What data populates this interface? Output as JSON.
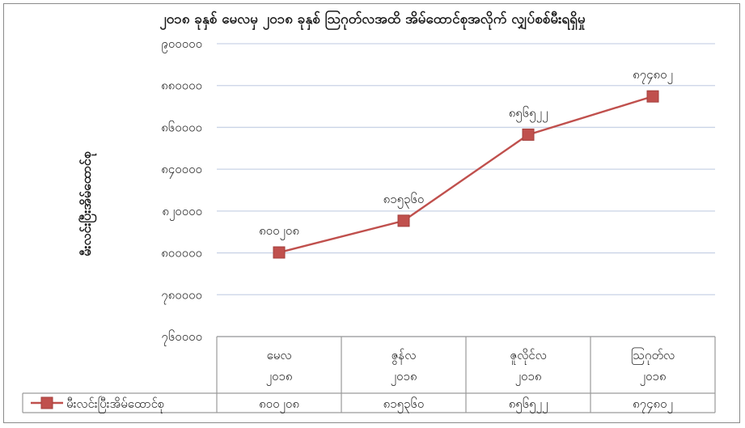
{
  "chart_data": {
    "type": "line",
    "title": "၂၀၁၈ ခုနှစ် မေလမှ ၂၀၁၈ ခုနှစ် ဩဂုတ်လအထိ အိမ်ထောင်စုအလိုက် လျှပ်စစ်မီးရရှိမှု",
    "ylabel": "မီးလင်းပြီးအိမ်ထောင်စု",
    "xlabel": "",
    "categories": [
      {
        "line1": "မေလ",
        "line2": "၂၀၁၈"
      },
      {
        "line1": "ဇွန်လ",
        "line2": "၂၀၁၈"
      },
      {
        "line1": "ဇူလိုင်လ",
        "line2": "၂၀၁၈"
      },
      {
        "line1": "ဩဂုတ်လ",
        "line2": "၂၀၁၈"
      }
    ],
    "yticks": [
      "၇၆၀၀၀၀",
      "၇၈၀၀၀၀",
      "၈၀၀၀၀၀",
      "၈၂၀၀၀၀",
      "၈၄၀၀၀၀",
      "၈၆၀၀၀၀",
      "၈၈၀၀၀၀",
      "၉၀၀၀၀၀"
    ],
    "ylim": [
      760000,
      900000
    ],
    "ytick_values": [
      760000,
      780000,
      800000,
      820000,
      840000,
      860000,
      880000,
      900000
    ],
    "series": [
      {
        "name": "မီးလင်းပြီးအိမ်ထောင်စု",
        "values": [
          800208,
          815360,
          856522,
          874802
        ],
        "labels": [
          "၈၀၀၂၀၈",
          "၈၁၅၃၆၀",
          "၈၅၆၅၂၂",
          "၈၇၄၈၀၂"
        ],
        "color": "#c0504d"
      }
    ],
    "grid": true,
    "legend": "bottom-left data table"
  }
}
